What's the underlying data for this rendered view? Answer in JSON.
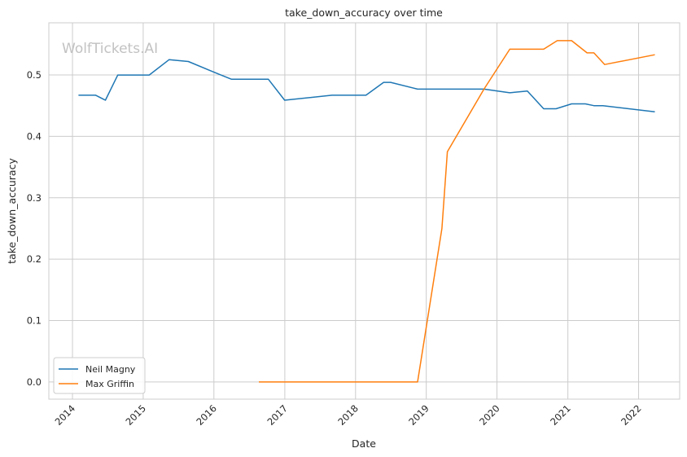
{
  "chart_data": {
    "type": "line",
    "title": "take_down_accuracy over time",
    "xlabel": "Date",
    "ylabel": "take_down_accuracy",
    "watermark": "WolfTickets.AI",
    "x_ticks": [
      "2014",
      "2015",
      "2016",
      "2017",
      "2018",
      "2019",
      "2020",
      "2021",
      "2022"
    ],
    "y_ticks": [
      "0.0",
      "0.1",
      "0.2",
      "0.3",
      "0.4",
      "0.5"
    ],
    "xlim": [
      "2013-09-01",
      "2022-08-01"
    ],
    "ylim": [
      -0.028,
      0.585
    ],
    "grid": true,
    "legend_position": "lower-left",
    "series": [
      {
        "name": "Neil Magny",
        "color": "#1f77b4",
        "points": [
          [
            "2014-02-01",
            0.467
          ],
          [
            "2014-05-01",
            0.467
          ],
          [
            "2014-06-20",
            0.459
          ],
          [
            "2014-08-23",
            0.5
          ],
          [
            "2015-02-01",
            0.5
          ],
          [
            "2015-05-15",
            0.525
          ],
          [
            "2015-08-22",
            0.522
          ],
          [
            "2016-02-06",
            0.5
          ],
          [
            "2016-04-01",
            0.493
          ],
          [
            "2016-10-08",
            0.493
          ],
          [
            "2016-12-31",
            0.459
          ],
          [
            "2017-09-01",
            0.467
          ],
          [
            "2018-02-24",
            0.467
          ],
          [
            "2018-05-26",
            0.488
          ],
          [
            "2018-07-01",
            0.488
          ],
          [
            "2018-11-17",
            0.477
          ],
          [
            "2019-10-26",
            0.477
          ],
          [
            "2020-03-07",
            0.471
          ],
          [
            "2020-06-06",
            0.474
          ],
          [
            "2020-08-29",
            0.445
          ],
          [
            "2020-11-01",
            0.445
          ],
          [
            "2021-01-20",
            0.453
          ],
          [
            "2021-04-01",
            0.453
          ],
          [
            "2021-05-15",
            0.45
          ],
          [
            "2021-07-01",
            0.45
          ],
          [
            "2022-03-26",
            0.44
          ]
        ]
      },
      {
        "name": "Max Griffin",
        "color": "#ff7f0e",
        "points": [
          [
            "2016-08-20",
            0.0
          ],
          [
            "2018-11-17",
            0.0
          ],
          [
            "2019-03-23",
            0.25
          ],
          [
            "2019-04-20",
            0.375
          ],
          [
            "2019-10-26",
            0.477
          ],
          [
            "2020-03-07",
            0.542
          ],
          [
            "2020-08-29",
            0.542
          ],
          [
            "2020-11-07",
            0.556
          ],
          [
            "2021-01-20",
            0.556
          ],
          [
            "2021-04-10",
            0.536
          ],
          [
            "2021-05-15",
            0.536
          ],
          [
            "2021-07-10",
            0.517
          ],
          [
            "2022-03-26",
            0.533
          ]
        ]
      }
    ]
  }
}
